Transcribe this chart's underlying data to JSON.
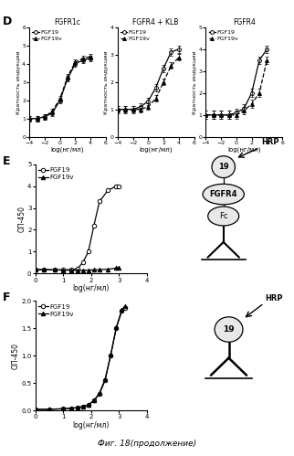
{
  "panel_D": {
    "titles": [
      "FGFR1c",
      "FGFR4 + KLB",
      "FGFR4"
    ],
    "xlabel": "log(нг/мл)",
    "ylabel": "Кратность индукции",
    "legend": [
      "FGF19",
      "FGF19v"
    ],
    "xlim": [
      -4,
      6
    ],
    "xticks": [
      -4,
      -2,
      0,
      2,
      4,
      6
    ],
    "ylim_1": [
      0,
      6
    ],
    "yticks_1": [
      0,
      1,
      2,
      3,
      4,
      5,
      6
    ],
    "ylim_2": [
      0,
      4
    ],
    "yticks_2": [
      0,
      1,
      2,
      3,
      4
    ],
    "ylim_3": [
      0,
      5
    ],
    "yticks_3": [
      0,
      1,
      2,
      3,
      4,
      5
    ],
    "fgfr1c_fgf19_x": [
      -4,
      -3,
      -2,
      -1,
      0,
      1,
      2,
      3,
      4
    ],
    "fgfr1c_fgf19_y": [
      1.0,
      1.0,
      1.1,
      1.3,
      2.0,
      3.2,
      4.0,
      4.2,
      4.3
    ],
    "fgfr1c_fgf19v_x": [
      -4,
      -3,
      -2,
      -1,
      0,
      1,
      2,
      3,
      4
    ],
    "fgfr1c_fgf19v_y": [
      1.0,
      1.0,
      1.1,
      1.4,
      2.1,
      3.3,
      4.1,
      4.3,
      4.4
    ],
    "fgfr4klb_fgf19_x": [
      -4,
      -3,
      -2,
      -1,
      0,
      1,
      2,
      3,
      4
    ],
    "fgfr4klb_fgf19_y": [
      1.0,
      1.0,
      1.0,
      1.1,
      1.3,
      1.8,
      2.5,
      3.1,
      3.2
    ],
    "fgfr4klb_fgf19v_x": [
      -4,
      -3,
      -2,
      -1,
      0,
      1,
      2,
      3,
      4
    ],
    "fgfr4klb_fgf19v_y": [
      1.0,
      1.0,
      1.0,
      1.0,
      1.1,
      1.4,
      2.0,
      2.6,
      2.9
    ],
    "fgfr4_fgf19_x": [
      -4,
      -3,
      -2,
      -1,
      0,
      1,
      2,
      3,
      4
    ],
    "fgfr4_fgf19_y": [
      1.0,
      1.0,
      1.0,
      1.0,
      1.1,
      1.3,
      2.0,
      3.5,
      4.0
    ],
    "fgfr4_fgf19v_x": [
      -4,
      -3,
      -2,
      -1,
      0,
      1,
      2,
      3,
      4
    ],
    "fgfr4_fgf19v_y": [
      1.0,
      1.0,
      1.0,
      1.0,
      1.0,
      1.2,
      1.5,
      2.0,
      3.5
    ]
  },
  "panel_E": {
    "xlabel": "log(нг/мл)",
    "ylabel": "ОП-450",
    "legend": [
      "FGF19",
      "FGF19v"
    ],
    "xlim": [
      0,
      4
    ],
    "xticks": [
      0,
      1,
      2,
      3,
      4
    ],
    "ylim": [
      0,
      5
    ],
    "yticks": [
      0,
      1,
      2,
      3,
      4,
      5
    ],
    "fgf19_x": [
      0.0,
      0.3,
      0.7,
      1.0,
      1.3,
      1.5,
      1.7,
      1.9,
      2.1,
      2.3,
      2.6,
      2.9,
      3.0
    ],
    "fgf19_y": [
      0.18,
      0.18,
      0.17,
      0.17,
      0.18,
      0.22,
      0.5,
      1.0,
      2.2,
      3.3,
      3.8,
      4.0,
      4.0
    ],
    "fgf19v_x": [
      0.0,
      0.3,
      0.7,
      1.0,
      1.3,
      1.5,
      1.7,
      1.9,
      2.1,
      2.3,
      2.6,
      2.9,
      3.0
    ],
    "fgf19v_y": [
      0.18,
      0.18,
      0.17,
      0.16,
      0.15,
      0.15,
      0.15,
      0.16,
      0.17,
      0.18,
      0.2,
      0.25,
      0.28
    ]
  },
  "panel_F": {
    "xlabel": "log(нг/мл)",
    "ylabel": "ОП-450",
    "legend": [
      "FGF19",
      "FGF19v"
    ],
    "xlim": [
      0,
      4
    ],
    "xticks": [
      0,
      1,
      2,
      3,
      4
    ],
    "ylim": [
      0,
      2.0
    ],
    "yticks": [
      0.0,
      0.5,
      1.0,
      1.5,
      2.0
    ],
    "fgf19_x": [
      0.0,
      0.5,
      1.0,
      1.3,
      1.5,
      1.7,
      1.9,
      2.1,
      2.3,
      2.5,
      2.7,
      2.9,
      3.1,
      3.2
    ],
    "fgf19_y": [
      0.02,
      0.02,
      0.03,
      0.04,
      0.05,
      0.07,
      0.1,
      0.18,
      0.3,
      0.55,
      1.0,
      1.5,
      1.82,
      1.88
    ],
    "fgf19v_x": [
      0.0,
      0.5,
      1.0,
      1.3,
      1.5,
      1.7,
      1.9,
      2.1,
      2.3,
      2.5,
      2.7,
      2.9,
      3.1,
      3.2
    ],
    "fgf19v_y": [
      0.02,
      0.02,
      0.03,
      0.04,
      0.05,
      0.07,
      0.1,
      0.18,
      0.32,
      0.57,
      1.02,
      1.52,
      1.84,
      1.9
    ]
  },
  "figure_label": "Фиг. 18(продолжение)",
  "bg_color": "#ffffff"
}
